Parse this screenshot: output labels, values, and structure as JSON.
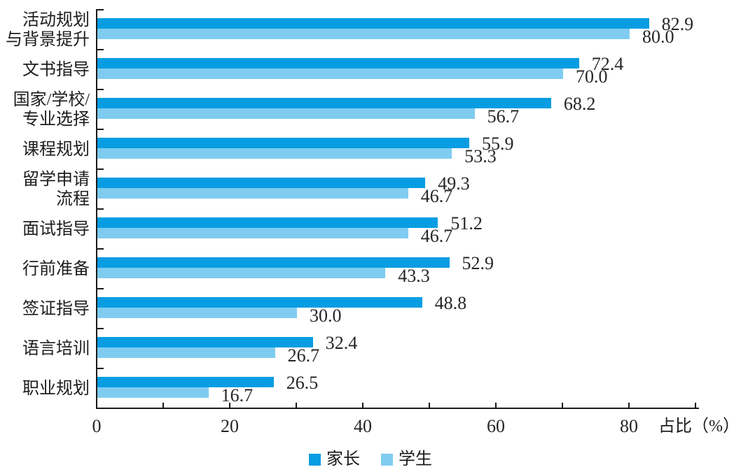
{
  "chart_data": {
    "type": "bar",
    "orientation": "horizontal",
    "title": "",
    "xlabel": "占比（%）",
    "xlim": [
      0,
      90
    ],
    "xticks": [
      0,
      20,
      40,
      60,
      80
    ],
    "minor_tick_step": 10,
    "grid": false,
    "legend_position": "bottom",
    "categories": [
      "活动规划\n与背景提升",
      "文书指导",
      "国家/学校/\n专业选择",
      "课程规划",
      "留学申请\n流程",
      "面试指导",
      "行前准备",
      "签证指导",
      "语言培训",
      "职业规划"
    ],
    "series": [
      {
        "name": "家长",
        "color": "#089de2",
        "values": [
          82.9,
          72.4,
          68.2,
          55.9,
          49.3,
          51.2,
          52.9,
          48.8,
          32.4,
          26.5
        ]
      },
      {
        "name": "学生",
        "color": "#7fccf0",
        "values": [
          80.0,
          70.0,
          56.7,
          53.3,
          46.7,
          46.7,
          43.3,
          30.0,
          26.7,
          16.7
        ]
      }
    ],
    "value_label_decimals": 1,
    "axis_color": "#1a1a1a",
    "text_color": "#262626"
  }
}
